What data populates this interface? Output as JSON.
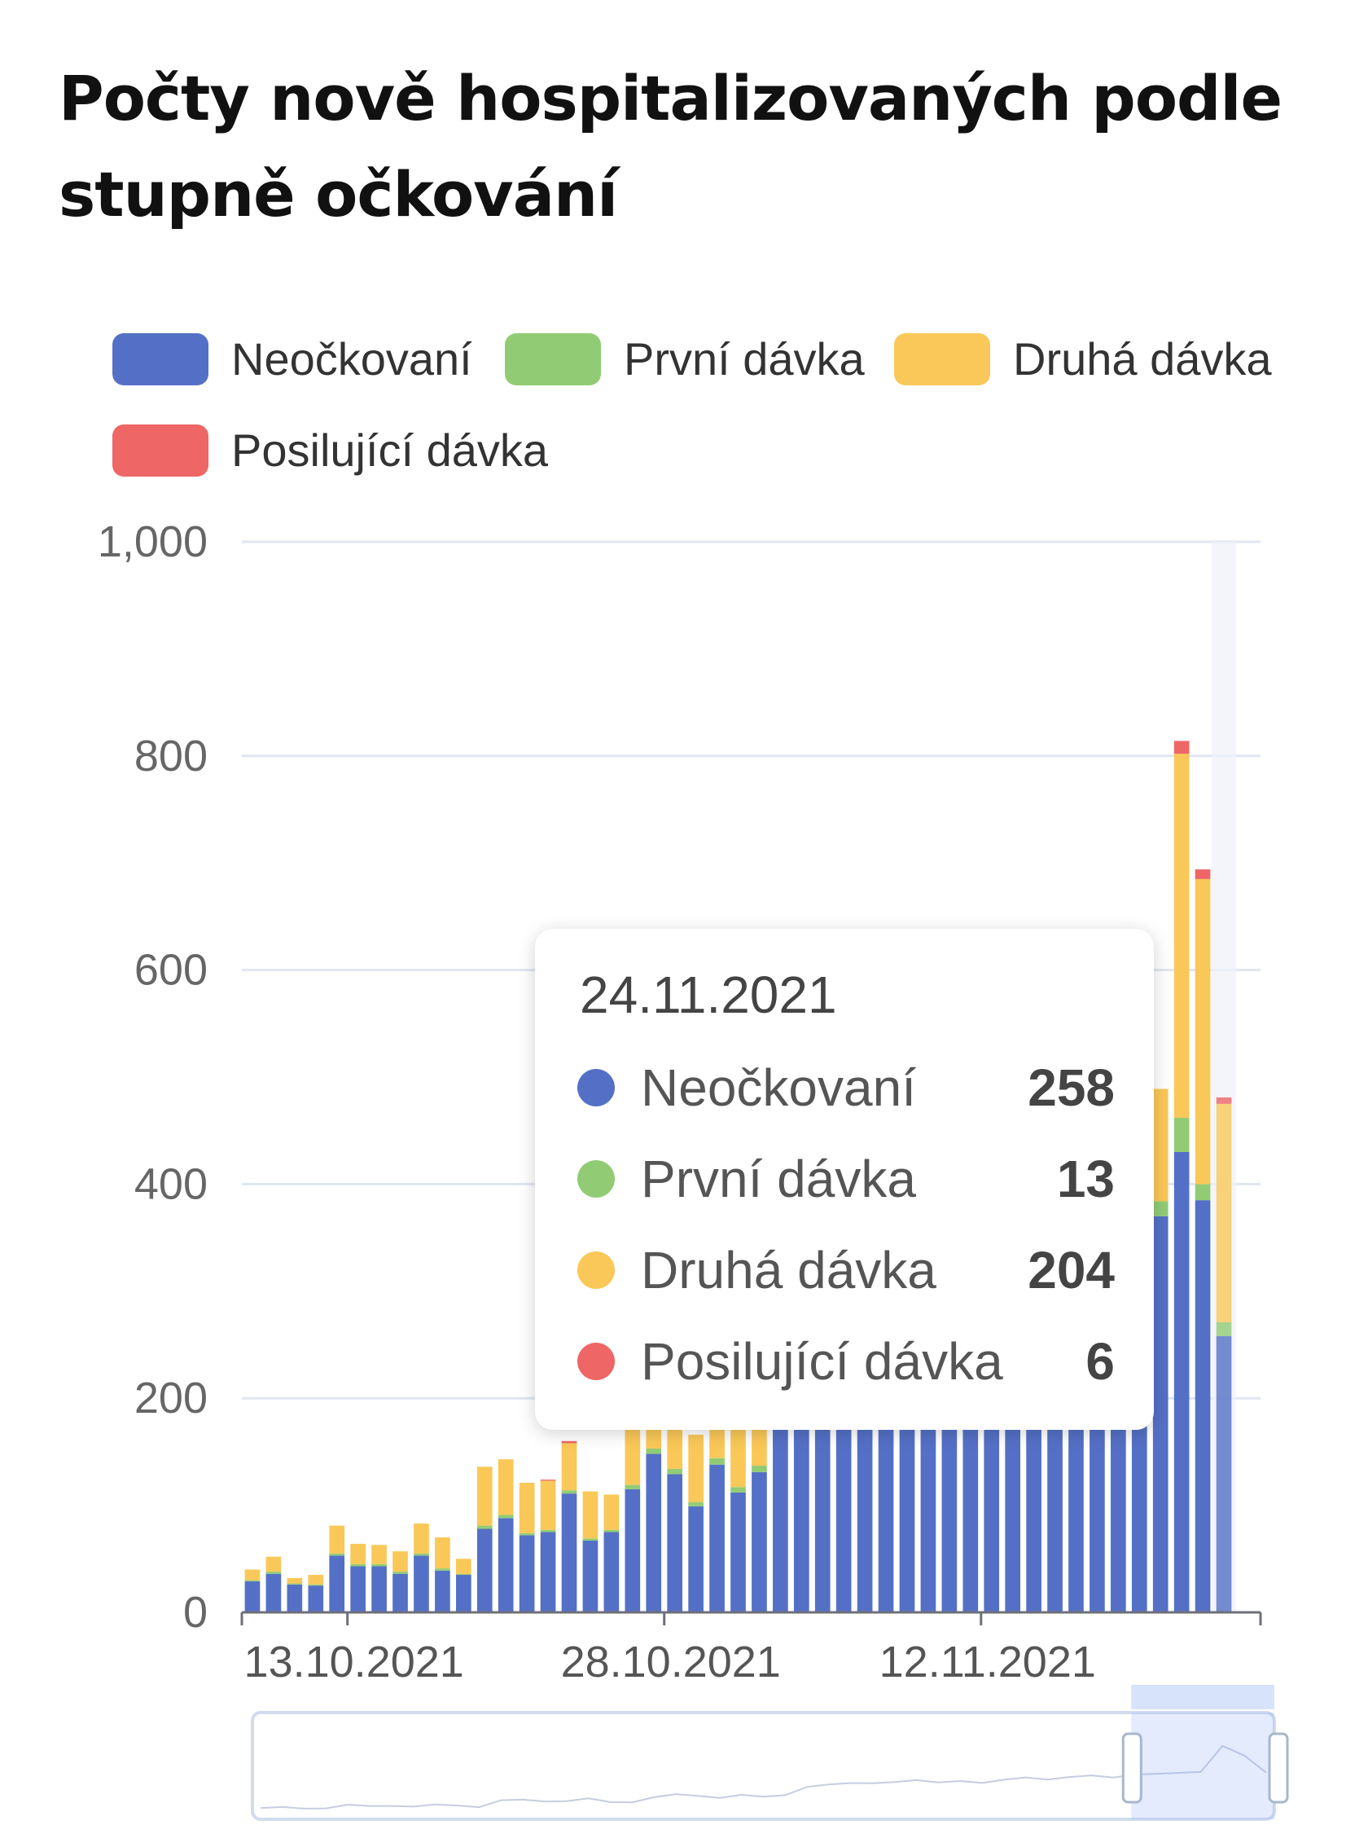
{
  "colors": {
    "neockovani": "#5470c6",
    "prvni": "#91cc75",
    "druha": "#fac858",
    "posilujici": "#ee6666"
  },
  "chart_data": {
    "type": "bar",
    "stacked": true,
    "title": "Počty nově hospitalizovaných podle stupně očkování",
    "xlabel": "",
    "ylabel": "",
    "ylim": [
      0,
      1000
    ],
    "y_ticks": [
      "0",
      "200",
      "400",
      "600",
      "800",
      "1,000"
    ],
    "x_ticks": [
      {
        "label": "13.10.2021",
        "index": 5
      },
      {
        "label": "28.10.2021",
        "index": 20
      },
      {
        "label": "12.11.2021",
        "index": 35
      }
    ],
    "grid": true,
    "legend_placement": "top",
    "categories": [
      "09.10.2021",
      "10.10.2021",
      "11.10.2021",
      "12.10.2021",
      "13.10.2021",
      "14.10.2021",
      "15.10.2021",
      "16.10.2021",
      "17.10.2021",
      "18.10.2021",
      "19.10.2021",
      "20.10.2021",
      "21.10.2021",
      "22.10.2021",
      "23.10.2021",
      "24.10.2021",
      "25.10.2021",
      "26.10.2021",
      "27.10.2021",
      "28.10.2021",
      "29.10.2021",
      "30.10.2021",
      "31.10.2021",
      "01.11.2021",
      "02.11.2021",
      "03.11.2021",
      "04.11.2021",
      "05.11.2021",
      "06.11.2021",
      "07.11.2021",
      "08.11.2021",
      "09.11.2021",
      "10.11.2021",
      "11.11.2021",
      "12.11.2021",
      "13.11.2021",
      "14.11.2021",
      "15.11.2021",
      "16.11.2021",
      "17.11.2021",
      "18.11.2021",
      "19.11.2021",
      "20.11.2021",
      "21.11.2021",
      "22.11.2021",
      "23.11.2021",
      "24.11.2021"
    ],
    "series": [
      {
        "name": "Neočkovaní",
        "color": "#5470c6",
        "values": [
          29,
          36,
          26,
          25,
          53,
          43,
          43,
          36,
          53,
          39,
          35,
          78,
          88,
          72,
          75,
          111,
          67,
          75,
          115,
          148,
          129,
          99,
          138,
          112,
          131,
          220,
          245,
          262,
          258,
          270,
          288,
          265,
          278,
          258,
          283,
          300,
          290,
          310,
          320,
          300,
          325,
          330,
          335,
          370,
          430,
          385,
          258
        ]
      },
      {
        "name": "První dávka",
        "color": "#91cc75",
        "values": [
          1,
          2,
          1,
          1,
          2,
          2,
          2,
          2,
          2,
          2,
          1,
          3,
          3,
          2,
          2,
          3,
          2,
          2,
          4,
          5,
          5,
          4,
          6,
          5,
          6,
          8,
          9,
          9,
          8,
          9,
          10,
          9,
          10,
          8,
          10,
          11,
          10,
          11,
          12,
          10,
          12,
          12,
          13,
          14,
          32,
          15,
          13
        ]
      },
      {
        "name": "Druhá dávka",
        "color": "#fac858",
        "values": [
          10,
          14,
          5,
          9,
          26,
          19,
          18,
          19,
          28,
          29,
          14,
          55,
          52,
          47,
          46,
          44,
          44,
          33,
          55,
          60,
          57,
          63,
          60,
          64,
          62,
          75,
          80,
          80,
          82,
          85,
          90,
          85,
          88,
          86,
          100,
          110,
          95,
          105,
          115,
          110,
          120,
          125,
          130,
          105,
          340,
          285,
          204
        ]
      },
      {
        "name": "Posilující dávka",
        "color": "#ee6666",
        "values": [
          0,
          0,
          0,
          0,
          0,
          0,
          0,
          0,
          0,
          0,
          0,
          0,
          0,
          0,
          1,
          2,
          0,
          0,
          0,
          0,
          0,
          0,
          0,
          0,
          0,
          0,
          0,
          0,
          0,
          0,
          0,
          0,
          0,
          0,
          0,
          0,
          0,
          0,
          0,
          0,
          0,
          0,
          0,
          0,
          12,
          9,
          6
        ]
      }
    ]
  },
  "legend": [
    {
      "label": "Neočkovaní",
      "color": "#5470c6"
    },
    {
      "label": "První dávka",
      "color": "#91cc75"
    },
    {
      "label": "Druhá dávka",
      "color": "#fac858"
    },
    {
      "label": "Posilující dávka",
      "color": "#ee6666"
    }
  ],
  "tooltip": {
    "date": "24.11.2021",
    "rows": [
      {
        "label": "Neočkovaní",
        "value": "258",
        "color": "#5470c6"
      },
      {
        "label": "První dávka",
        "value": "13",
        "color": "#91cc75"
      },
      {
        "label": "Druhá dávka",
        "value": "204",
        "color": "#fac858"
      },
      {
        "label": "Posilující dávka",
        "value": "6",
        "color": "#ee6666"
      }
    ]
  },
  "datazoom": {
    "window_start_fraction": 0.86,
    "window_end_fraction": 1.0
  }
}
